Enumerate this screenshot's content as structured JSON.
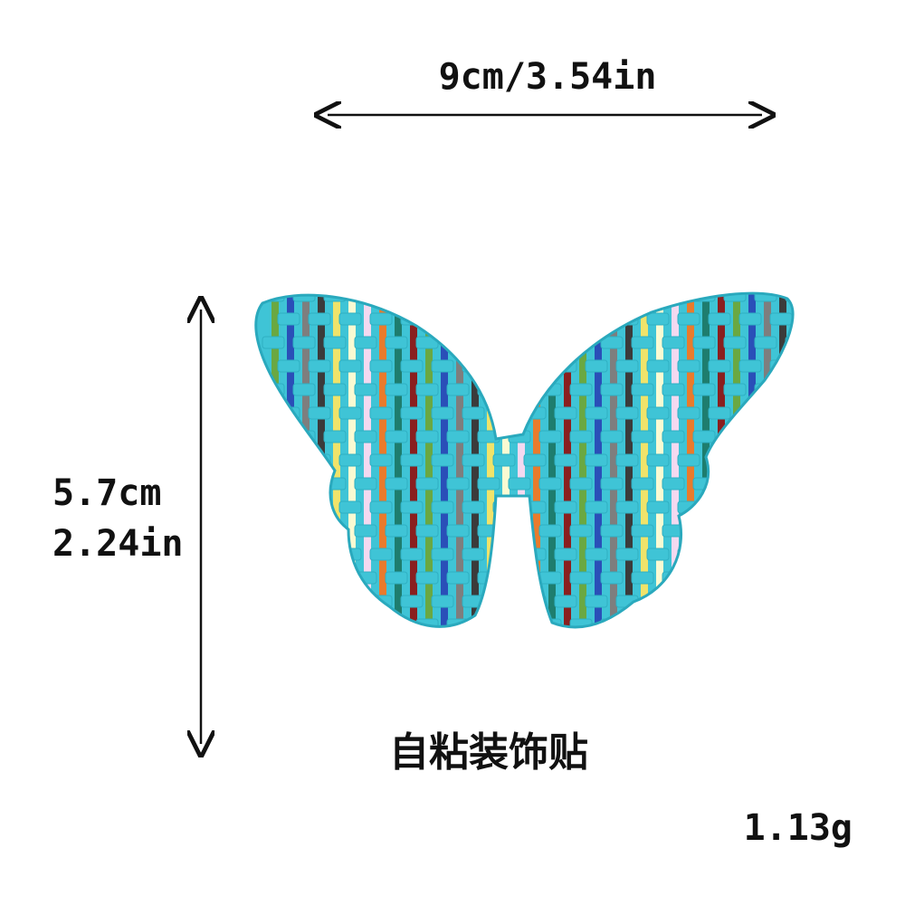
{
  "dimensions": {
    "width": "9cm/3.54in",
    "height_cm": "5.7cm",
    "height_in": "2.24in"
  },
  "caption": "自粘装饰贴",
  "weight": "1.13g",
  "product": {
    "base_color": "#3fc4d6",
    "stripe_colors": [
      "#2a4fb8",
      "#f0e36a",
      "#e97b2c",
      "#6aa842",
      "#3b3b3b",
      "#f4d9f0",
      "#8a1f1f",
      "#7e7e7e",
      "#fafad2",
      "#1e7d6e"
    ]
  }
}
